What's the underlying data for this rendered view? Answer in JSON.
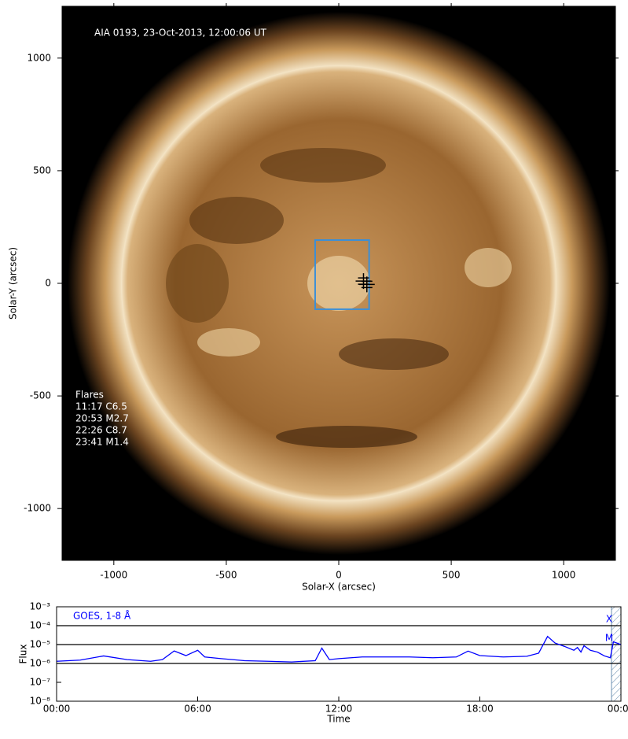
{
  "chart_data": [
    {
      "type": "image",
      "annotation": "AIA 0193, 23-Oct-2013, 12:00:06 UT",
      "xlabel": "Solar-X (arcsec)",
      "ylabel": "Solar-Y (arcsec)",
      "xlim": [
        -1230,
        1230
      ],
      "ylim": [
        -1230,
        1230
      ],
      "xticks": [
        -1000,
        -500,
        0,
        500,
        1000
      ],
      "yticks": [
        -1000,
        -500,
        0,
        500,
        1000
      ],
      "flares_title": "Flares",
      "flares": [
        "11:17 C6.5",
        "20:53 M2.7",
        "22:26 C8.7",
        "23:41 M1.4"
      ],
      "box": {
        "x": [
          -105,
          135
        ],
        "y": [
          -115,
          192
        ],
        "color": "#3a8fd8"
      },
      "markers": {
        "x": [
          110,
          125
        ],
        "y": [
          10,
          -5
        ]
      }
    },
    {
      "type": "line",
      "log_y": true,
      "xlabel": "Time",
      "ylabel": "Flux",
      "xlim": [
        0,
        24
      ],
      "xticks": [
        {
          "value": 0,
          "label": "00:00"
        },
        {
          "value": 6,
          "label": "06:00"
        },
        {
          "value": 12,
          "label": "12:00"
        },
        {
          "value": 18,
          "label": "18:00"
        },
        {
          "value": 24,
          "label": "00:00"
        }
      ],
      "ylim": [
        1e-08,
        0.001
      ],
      "yticks": [
        {
          "value": 1e-08,
          "label": "10⁻⁸"
        },
        {
          "value": 1e-07,
          "label": "10⁻⁷"
        },
        {
          "value": 1e-06,
          "label": "10⁻⁶"
        },
        {
          "value": 1e-05,
          "label": "10⁻⁵"
        },
        {
          "value": 0.0001,
          "label": "10⁻⁴"
        },
        {
          "value": 0.001,
          "label": "10⁻³"
        }
      ],
      "hlines": [
        0.0001,
        1e-05,
        1e-06
      ],
      "class_labels": [
        {
          "value": 0.0001,
          "label": "X"
        },
        {
          "value": 1e-05,
          "label": "M"
        }
      ],
      "xspan": [
        23.6,
        24
      ],
      "x": [
        0,
        1,
        2,
        3,
        4,
        4.5,
        5,
        5.5,
        6,
        6.3,
        7,
        8,
        9,
        10,
        11,
        11.28,
        11.6,
        12,
        13,
        14,
        15,
        16,
        17,
        17.5,
        18,
        19,
        20,
        20.5,
        20.88,
        21.2,
        21.6,
        22,
        22.15,
        22.3,
        22.43,
        22.7,
        23,
        23.3,
        23.55,
        23.68,
        24
      ],
      "series": [
        {
          "name": "GOES, 1-8 Å",
          "color": "#0000ff",
          "values": [
            1.3e-06,
            1.5e-06,
            2.5e-06,
            1.6e-06,
            1.3e-06,
            1.6e-06,
            4.6e-06,
            2.6e-06,
            5e-06,
            2.2e-06,
            1.8e-06,
            1.4e-06,
            1.3e-06,
            1.2e-06,
            1.4e-06,
            6.5e-06,
            1.6e-06,
            1.8e-06,
            2.2e-06,
            2.2e-06,
            2.2e-06,
            2e-06,
            2.2e-06,
            4.5e-06,
            2.6e-06,
            2.2e-06,
            2.4e-06,
            3.5e-06,
            2.7e-05,
            1.2e-05,
            8e-06,
            5e-06,
            7e-06,
            4e-06,
            8.7e-06,
            5e-06,
            4e-06,
            2.5e-06,
            2e-06,
            1.4e-05,
            1e-05
          ]
        }
      ]
    }
  ]
}
